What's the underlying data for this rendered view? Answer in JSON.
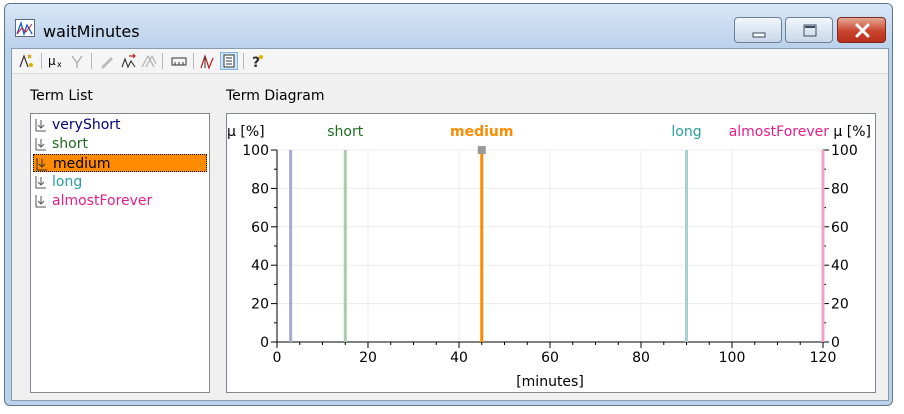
{
  "window": {
    "title": "waitMinutes"
  },
  "toolbar": {
    "icons": [
      "add-term-icon",
      "mu-x-icon",
      "gamma-icon",
      "pencil-icon",
      "export-icon",
      "intersect-icon",
      "range-icon",
      "chart-icon",
      "list-view-icon",
      "help-icon"
    ]
  },
  "term_list": {
    "label": "Term List",
    "items": [
      {
        "name": "veryShort",
        "color": "#000080",
        "selected": false
      },
      {
        "name": "short",
        "color": "#1f6b1f",
        "selected": false
      },
      {
        "name": "medium",
        "color": "#000000",
        "selected": true
      },
      {
        "name": "long",
        "color": "#2b9c9c",
        "selected": false
      },
      {
        "name": "almostForever",
        "color": "#e0208c",
        "selected": false
      }
    ]
  },
  "term_diagram": {
    "label": "Term Diagram"
  },
  "chart_data": {
    "type": "line",
    "xlabel": "[minutes]",
    "ylabel_left": "µ [%]",
    "ylabel_right": "µ [%]",
    "xlim": [
      0,
      120
    ],
    "ylim": [
      0,
      100
    ],
    "x_ticks": [
      "0",
      "20",
      "40",
      "60",
      "80",
      "100",
      "120"
    ],
    "y_ticks": [
      "0",
      "20",
      "40",
      "60",
      "80",
      "100"
    ],
    "grid": true,
    "series": [
      {
        "name": "veryShort",
        "label": "",
        "x": 3,
        "value": 100,
        "color": "#a9a9d2",
        "highlight": false
      },
      {
        "name": "short",
        "label": "short",
        "x": 15,
        "value": 100,
        "color": "#a8cca8",
        "highlight": false
      },
      {
        "name": "medium",
        "label": "medium",
        "x": 45,
        "value": 100,
        "color": "#ff8c00",
        "highlight": true
      },
      {
        "name": "long",
        "label": "long",
        "x": 90,
        "value": 100,
        "color": "#a8d0d0",
        "highlight": false
      },
      {
        "name": "almostForever",
        "label": "almostForever",
        "x": 120,
        "value": 100,
        "color": "#f0a0cc",
        "highlight": false
      }
    ]
  }
}
